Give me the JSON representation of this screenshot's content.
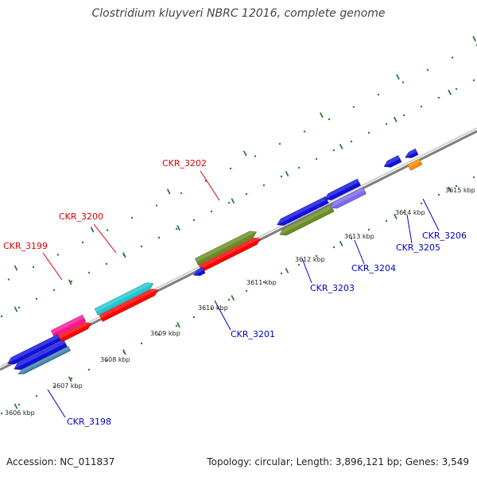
{
  "title": "Clostridium kluyveri NBRC 12016, complete genome",
  "accession": "Accession: NC_011837",
  "topology": "Topology: circular; Length: 3,896,121 bp; Genes: 3,549",
  "colors": {
    "backbone": "#808080",
    "tick": "#2e7d32",
    "label_top": "#dd0000",
    "label_bottom": "#0000cc"
  },
  "kbp_labels": [
    "3606 kbp",
    "3607 kbp",
    "3608 kbp",
    "3609 kbp",
    "3610 kbp",
    "3611 kbp",
    "3612 kbp",
    "3613 kbp",
    "3614 kbp",
    "3615 kbp"
  ],
  "gene_labels": {
    "top": [
      "CKR_3199",
      "CKR_3200",
      "CKR_3202"
    ],
    "bottom": [
      "CKR_3198",
      "CKR_3201",
      "CKR_3203",
      "CKR_3204",
      "CKR_3205",
      "CKR_3206"
    ]
  },
  "genes": [
    {
      "strand": "top",
      "color": "#ff1493",
      "arrow": "none"
    },
    {
      "strand": "top",
      "color": "#ff0000",
      "arrow": "right"
    },
    {
      "strand": "top",
      "color": "#20c8d0",
      "arrow": "right"
    },
    {
      "strand": "top",
      "color": "#ff0000",
      "arrow": "right"
    },
    {
      "strand": "top",
      "color": "#6b8e23",
      "arrow": "right"
    },
    {
      "strand": "top",
      "color": "#ff0000",
      "arrow": "right"
    },
    {
      "strand": "bottom",
      "color": "#1010dd",
      "arrow": "left"
    },
    {
      "strand": "bottom",
      "color": "#1010dd",
      "arrow": "left"
    },
    {
      "strand": "bottom",
      "color": "#4682b4",
      "arrow": "left"
    },
    {
      "strand": "bottom",
      "color": "#1010dd",
      "arrow": "left"
    },
    {
      "strand": "bottom",
      "color": "#1010dd",
      "arrow": "left"
    },
    {
      "strand": "bottom",
      "color": "#6b8e23",
      "arrow": "left"
    },
    {
      "strand": "bottom",
      "color": "#1010dd",
      "arrow": "left"
    },
    {
      "strand": "bottom",
      "color": "#7b68ee",
      "arrow": "left"
    },
    {
      "strand": "bottom",
      "color": "#1010dd",
      "arrow": "left"
    },
    {
      "strand": "bottom",
      "color": "#1010dd",
      "arrow": "left"
    },
    {
      "strand": "bottom",
      "color": "#ff8c00",
      "arrow": "none"
    }
  ]
}
